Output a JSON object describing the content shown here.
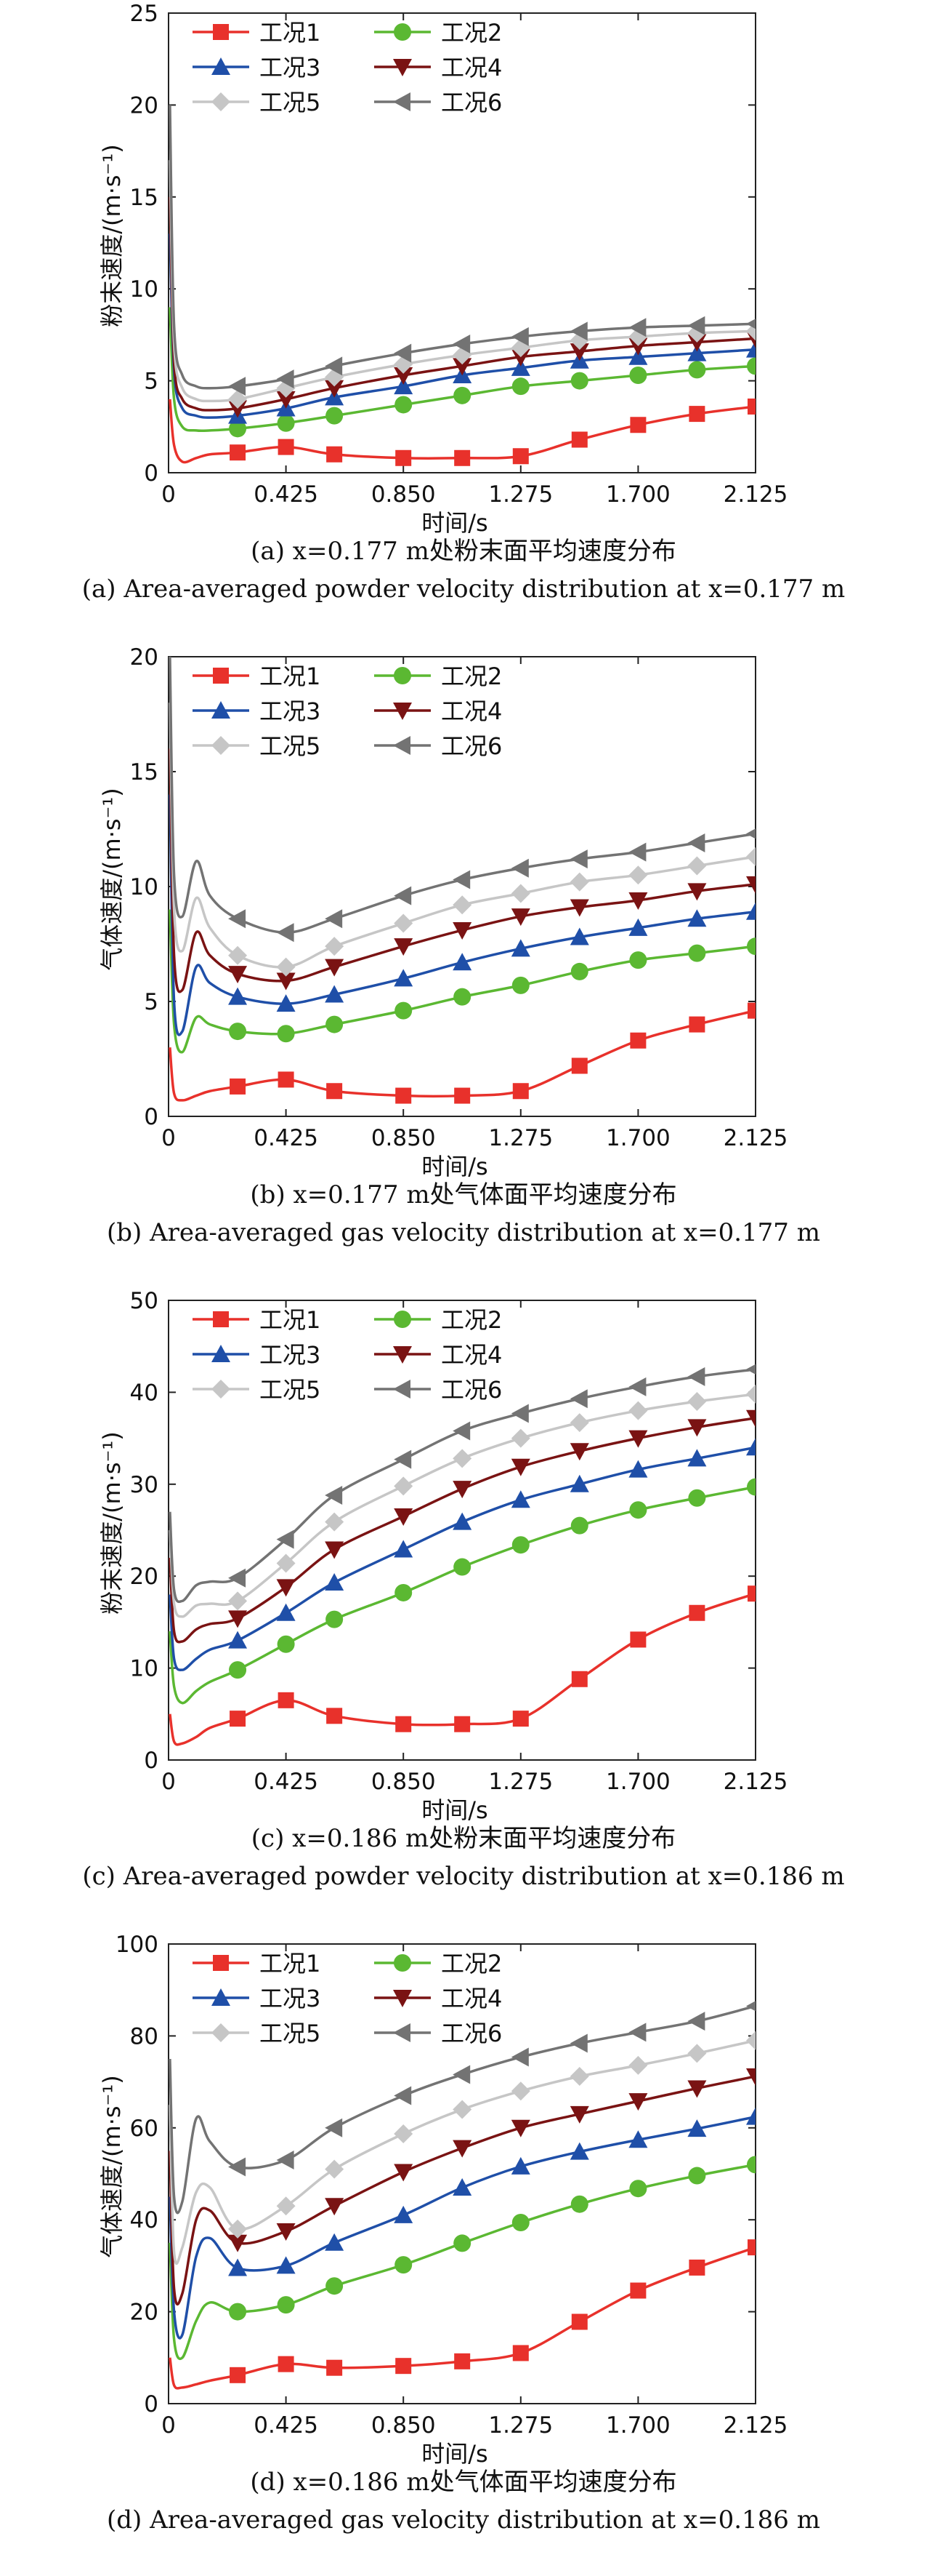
{
  "colors": {
    "工况1": "#e8312b",
    "工况2": "#5bb832",
    "工况3": "#1f4fa8",
    "工况4": "#7a1313",
    "工况5": "#c6c6c6",
    "工况6": "#737373"
  },
  "markers": {
    "工况1": "square",
    "工况2": "circle",
    "工况3": "triangle-up",
    "工况4": "triangle-down",
    "工况5": "diamond",
    "工况6": "triangle-left"
  },
  "chart_data": [
    {
      "type": "line",
      "xlabel": "时间/s",
      "ylabel": "粉末速度/(m·s⁻¹)",
      "xlim": [
        0,
        2.125
      ],
      "ylim": [
        0,
        25
      ],
      "xticks": [
        "0",
        "0.425",
        "0.850",
        "1.275",
        "1.700",
        "2.125"
      ],
      "yticks": [
        "0",
        "5",
        "10",
        "15",
        "20",
        "25"
      ],
      "legend_position": "top-left",
      "caption_cn": "(a) x=0.177 m处粉末面平均速度分布",
      "caption_en": "(a) Area-averaged powder velocity distribution at x=0.177 m",
      "series": [
        {
          "name": "工况1",
          "x": [
            0.005,
            0.02,
            0.05,
            0.1,
            0.15,
            0.25,
            0.425,
            0.6,
            0.85,
            1.063,
            1.275,
            1.488,
            1.7,
            1.913,
            2.125
          ],
          "y": [
            4.0,
            1.5,
            0.6,
            0.8,
            1.0,
            1.1,
            1.4,
            1.0,
            0.8,
            0.8,
            0.9,
            1.8,
            2.6,
            3.2,
            3.6
          ]
        },
        {
          "name": "工况2",
          "x": [
            0.005,
            0.02,
            0.05,
            0.1,
            0.15,
            0.25,
            0.425,
            0.6,
            0.85,
            1.063,
            1.275,
            1.488,
            1.7,
            1.913,
            2.125
          ],
          "y": [
            9.0,
            4.0,
            2.5,
            2.3,
            2.3,
            2.4,
            2.7,
            3.1,
            3.7,
            4.2,
            4.7,
            5.0,
            5.3,
            5.6,
            5.8
          ]
        },
        {
          "name": "工况3",
          "x": [
            0.005,
            0.02,
            0.05,
            0.1,
            0.15,
            0.25,
            0.425,
            0.6,
            0.85,
            1.063,
            1.275,
            1.488,
            1.7,
            1.913,
            2.125
          ],
          "y": [
            13.0,
            5.5,
            3.5,
            3.1,
            3.0,
            3.1,
            3.5,
            4.1,
            4.7,
            5.3,
            5.7,
            6.1,
            6.3,
            6.5,
            6.7
          ]
        },
        {
          "name": "工况4",
          "x": [
            0.005,
            0.02,
            0.05,
            0.1,
            0.15,
            0.25,
            0.425,
            0.6,
            0.85,
            1.063,
            1.275,
            1.488,
            1.7,
            1.913,
            2.125
          ],
          "y": [
            15.0,
            6.0,
            4.0,
            3.5,
            3.4,
            3.5,
            4.0,
            4.6,
            5.3,
            5.8,
            6.3,
            6.6,
            6.9,
            7.1,
            7.3
          ]
        },
        {
          "name": "工况5",
          "x": [
            0.005,
            0.02,
            0.05,
            0.1,
            0.15,
            0.25,
            0.425,
            0.6,
            0.85,
            1.063,
            1.275,
            1.488,
            1.7,
            1.913,
            2.125
          ],
          "y": [
            17.0,
            7.0,
            4.6,
            4.0,
            3.9,
            4.0,
            4.6,
            5.2,
            5.9,
            6.4,
            6.8,
            7.2,
            7.4,
            7.6,
            7.7
          ]
        },
        {
          "name": "工况6",
          "x": [
            0.005,
            0.02,
            0.05,
            0.1,
            0.15,
            0.25,
            0.425,
            0.6,
            0.85,
            1.063,
            1.275,
            1.488,
            1.7,
            1.913,
            2.125
          ],
          "y": [
            20.0,
            8.0,
            5.3,
            4.7,
            4.6,
            4.7,
            5.1,
            5.8,
            6.5,
            7.0,
            7.4,
            7.7,
            7.9,
            8.0,
            8.1
          ]
        }
      ]
    },
    {
      "type": "line",
      "xlabel": "时间/s",
      "ylabel": "气体速度/(m·s⁻¹)",
      "xlim": [
        0,
        2.125
      ],
      "ylim": [
        0,
        20
      ],
      "xticks": [
        "0",
        "0.425",
        "0.850",
        "1.275",
        "1.700",
        "2.125"
      ],
      "yticks": [
        "0",
        "5",
        "10",
        "15",
        "20"
      ],
      "legend_position": "top-left",
      "caption_cn": "(b) x=0.177 m处气体面平均速度分布",
      "caption_en": "(b) Area-averaged gas velocity distribution at x=0.177 m",
      "series": [
        {
          "name": "工况1",
          "x": [
            0.005,
            0.02,
            0.05,
            0.1,
            0.15,
            0.25,
            0.425,
            0.6,
            0.85,
            1.063,
            1.275,
            1.488,
            1.7,
            1.913,
            2.125
          ],
          "y": [
            3.0,
            1.0,
            0.7,
            0.9,
            1.1,
            1.3,
            1.6,
            1.1,
            0.9,
            0.9,
            1.1,
            2.2,
            3.3,
            4.0,
            4.6
          ]
        },
        {
          "name": "工况2",
          "x": [
            0.005,
            0.02,
            0.05,
            0.1,
            0.15,
            0.25,
            0.425,
            0.6,
            0.85,
            1.063,
            1.275,
            1.488,
            1.7,
            1.913,
            2.125
          ],
          "y": [
            9.0,
            4.0,
            2.8,
            4.3,
            4.0,
            3.7,
            3.6,
            4.0,
            4.6,
            5.2,
            5.7,
            6.3,
            6.8,
            7.1,
            7.4
          ]
        },
        {
          "name": "工况3",
          "x": [
            0.005,
            0.02,
            0.05,
            0.1,
            0.15,
            0.25,
            0.425,
            0.6,
            0.85,
            1.063,
            1.275,
            1.488,
            1.7,
            1.913,
            2.125
          ],
          "y": [
            14.0,
            5.0,
            3.7,
            6.5,
            5.8,
            5.2,
            4.9,
            5.3,
            6.0,
            6.7,
            7.3,
            7.8,
            8.2,
            8.6,
            8.9
          ]
        },
        {
          "name": "工况4",
          "x": [
            0.005,
            0.02,
            0.05,
            0.1,
            0.15,
            0.25,
            0.425,
            0.6,
            0.85,
            1.063,
            1.275,
            1.488,
            1.7,
            1.913,
            2.125
          ],
          "y": [
            16.0,
            7.0,
            5.5,
            8.0,
            7.0,
            6.2,
            5.9,
            6.5,
            7.4,
            8.1,
            8.7,
            9.1,
            9.4,
            9.8,
            10.1
          ]
        },
        {
          "name": "工况5",
          "x": [
            0.005,
            0.02,
            0.05,
            0.1,
            0.15,
            0.25,
            0.425,
            0.6,
            0.85,
            1.063,
            1.275,
            1.488,
            1.7,
            1.913,
            2.125
          ],
          "y": [
            18.0,
            9.0,
            7.2,
            9.5,
            8.2,
            7.0,
            6.5,
            7.4,
            8.4,
            9.2,
            9.7,
            10.2,
            10.5,
            10.9,
            11.3
          ]
        },
        {
          "name": "工况6",
          "x": [
            0.005,
            0.02,
            0.05,
            0.1,
            0.15,
            0.25,
            0.425,
            0.6,
            0.85,
            1.063,
            1.275,
            1.488,
            1.7,
            1.913,
            2.125
          ],
          "y": [
            20.0,
            10.5,
            8.7,
            11.1,
            9.6,
            8.6,
            8.0,
            8.6,
            9.6,
            10.3,
            10.8,
            11.2,
            11.5,
            11.9,
            12.3
          ]
        }
      ]
    },
    {
      "type": "line",
      "xlabel": "时间/s",
      "ylabel": "粉末速度/(m·s⁻¹)",
      "xlim": [
        0,
        2.125
      ],
      "ylim": [
        0,
        50
      ],
      "xticks": [
        "0",
        "0.425",
        "0.850",
        "1.275",
        "1.700",
        "2.125"
      ],
      "yticks": [
        "0",
        "10",
        "20",
        "30",
        "40",
        "50"
      ],
      "legend_position": "top-left",
      "caption_cn": "(c) x=0.186 m处粉末面平均速度分布",
      "caption_en": "(c) Area-averaged powder velocity distribution at x=0.186 m",
      "series": [
        {
          "name": "工况1",
          "x": [
            0.005,
            0.02,
            0.05,
            0.1,
            0.15,
            0.25,
            0.425,
            0.6,
            0.85,
            1.063,
            1.275,
            1.488,
            1.7,
            1.913,
            2.125
          ],
          "y": [
            5.0,
            2.0,
            1.8,
            2.5,
            3.5,
            4.5,
            6.5,
            4.8,
            3.9,
            3.9,
            4.5,
            8.8,
            13.1,
            16.0,
            18.1
          ]
        },
        {
          "name": "工况2",
          "x": [
            0.005,
            0.02,
            0.05,
            0.1,
            0.15,
            0.25,
            0.425,
            0.6,
            0.85,
            1.063,
            1.275,
            1.488,
            1.7,
            1.913,
            2.125
          ],
          "y": [
            14.0,
            8.0,
            6.2,
            7.5,
            8.5,
            9.8,
            12.6,
            15.3,
            18.2,
            21.0,
            23.4,
            25.5,
            27.2,
            28.5,
            29.7
          ]
        },
        {
          "name": "工况3",
          "x": [
            0.005,
            0.02,
            0.05,
            0.1,
            0.15,
            0.25,
            0.425,
            0.6,
            0.85,
            1.063,
            1.275,
            1.488,
            1.7,
            1.913,
            2.125
          ],
          "y": [
            18.0,
            11.0,
            9.8,
            11.0,
            12.0,
            13.0,
            16.0,
            19.3,
            22.9,
            25.9,
            28.3,
            30.0,
            31.6,
            32.8,
            34.0
          ]
        },
        {
          "name": "工况4",
          "x": [
            0.005,
            0.02,
            0.05,
            0.1,
            0.15,
            0.25,
            0.425,
            0.6,
            0.85,
            1.063,
            1.275,
            1.488,
            1.7,
            1.913,
            2.125
          ],
          "y": [
            22.0,
            14.0,
            12.9,
            14.2,
            14.8,
            15.4,
            18.8,
            22.9,
            26.5,
            29.5,
            31.9,
            33.6,
            35.0,
            36.2,
            37.2
          ]
        },
        {
          "name": "工况5",
          "x": [
            0.005,
            0.02,
            0.05,
            0.1,
            0.15,
            0.25,
            0.425,
            0.6,
            0.85,
            1.063,
            1.275,
            1.488,
            1.7,
            1.913,
            2.125
          ],
          "y": [
            25.0,
            17.0,
            15.6,
            16.8,
            17.0,
            17.3,
            21.4,
            25.9,
            29.8,
            32.8,
            35.0,
            36.7,
            38.0,
            39.0,
            39.8
          ]
        },
        {
          "name": "工况6",
          "x": [
            0.005,
            0.02,
            0.05,
            0.1,
            0.15,
            0.25,
            0.425,
            0.6,
            0.85,
            1.063,
            1.275,
            1.488,
            1.7,
            1.913,
            2.125
          ],
          "y": [
            27.0,
            18.5,
            17.3,
            19.0,
            19.4,
            19.8,
            24.0,
            28.8,
            32.7,
            35.8,
            37.7,
            39.3,
            40.6,
            41.7,
            42.5
          ]
        }
      ]
    },
    {
      "type": "line",
      "xlabel": "时间/s",
      "ylabel": "气体速度/(m·s⁻¹)",
      "xlim": [
        0,
        2.125
      ],
      "ylim": [
        0,
        100
      ],
      "xticks": [
        "0",
        "0.425",
        "0.850",
        "1.275",
        "1.700",
        "2.125"
      ],
      "yticks": [
        "0",
        "20",
        "40",
        "60",
        "80",
        "100"
      ],
      "legend_position": "top-left",
      "caption_cn": "(d) x=0.186 m处气体面平均速度分布",
      "caption_en": "(d) Area-averaged gas velocity distribution at x=0.186 m",
      "series": [
        {
          "name": "工况1",
          "x": [
            0.005,
            0.02,
            0.05,
            0.1,
            0.15,
            0.25,
            0.425,
            0.6,
            0.85,
            1.063,
            1.275,
            1.488,
            1.7,
            1.913,
            2.125
          ],
          "y": [
            10.0,
            4.0,
            3.5,
            4.2,
            5.0,
            6.2,
            8.6,
            7.8,
            8.2,
            9.2,
            11.0,
            17.8,
            24.6,
            29.6,
            34.0
          ]
        },
        {
          "name": "工况2",
          "x": [
            0.005,
            0.02,
            0.05,
            0.1,
            0.15,
            0.25,
            0.425,
            0.6,
            0.85,
            1.063,
            1.275,
            1.488,
            1.7,
            1.913,
            2.125
          ],
          "y": [
            35.0,
            14.0,
            10.0,
            18.0,
            22.0,
            20.0,
            21.5,
            25.6,
            30.2,
            34.9,
            39.4,
            43.4,
            46.8,
            49.6,
            52.0
          ]
        },
        {
          "name": "工况3",
          "x": [
            0.005,
            0.02,
            0.05,
            0.1,
            0.15,
            0.25,
            0.425,
            0.6,
            0.85,
            1.063,
            1.275,
            1.488,
            1.7,
            1.913,
            2.125
          ],
          "y": [
            45.0,
            20.0,
            15.0,
            32.0,
            36.0,
            29.5,
            30.0,
            35.0,
            41.0,
            47.0,
            51.6,
            54.8,
            57.4,
            59.8,
            62.4
          ]
        },
        {
          "name": "工况4",
          "x": [
            0.005,
            0.02,
            0.05,
            0.1,
            0.15,
            0.25,
            0.425,
            0.6,
            0.85,
            1.063,
            1.275,
            1.488,
            1.7,
            1.913,
            2.125
          ],
          "y": [
            55.0,
            25.0,
            24.0,
            40.0,
            42.0,
            35.0,
            37.5,
            43.0,
            50.4,
            55.6,
            60.0,
            63.0,
            65.8,
            68.6,
            71.2
          ]
        },
        {
          "name": "工况5",
          "x": [
            0.005,
            0.02,
            0.05,
            0.1,
            0.15,
            0.25,
            0.425,
            0.6,
            0.85,
            1.063,
            1.275,
            1.488,
            1.7,
            1.913,
            2.125
          ],
          "y": [
            65.0,
            33.0,
            34.0,
            46.0,
            47.0,
            38.0,
            43.0,
            51.0,
            58.7,
            64.0,
            68.0,
            71.2,
            73.6,
            76.2,
            79.0
          ]
        },
        {
          "name": "工况6",
          "x": [
            0.005,
            0.02,
            0.05,
            0.1,
            0.15,
            0.25,
            0.425,
            0.6,
            0.85,
            1.063,
            1.275,
            1.488,
            1.7,
            1.913,
            2.125
          ],
          "y": [
            75.0,
            45.0,
            44.0,
            62.0,
            57.0,
            51.5,
            53.0,
            60.0,
            67.0,
            71.6,
            75.4,
            78.4,
            80.8,
            83.2,
            86.5
          ]
        }
      ]
    }
  ]
}
